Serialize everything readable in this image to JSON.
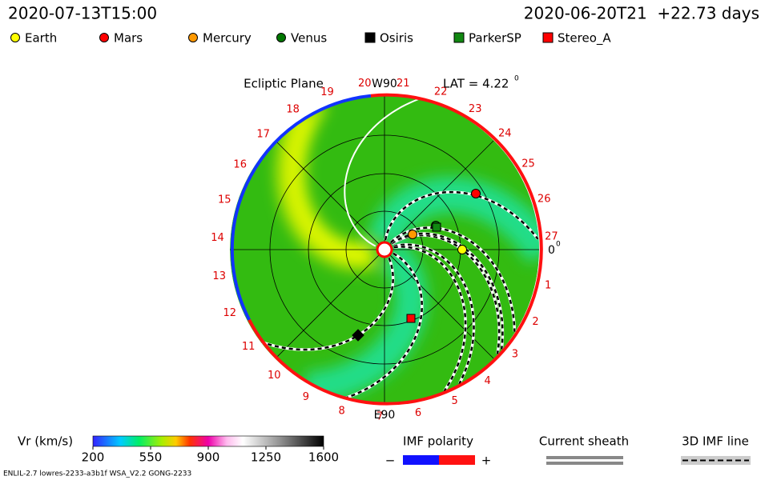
{
  "header": {
    "timestamp": "2020-07-13T15:00",
    "run": "2020-06-20T21  +22.73 days"
  },
  "legend": [
    {
      "label": "Earth",
      "color": "#ffff00",
      "shape": "circle"
    },
    {
      "label": "Mars",
      "color": "#ff0000",
      "shape": "circle"
    },
    {
      "label": "Mercury",
      "color": "#ff9900",
      "shape": "circle"
    },
    {
      "label": "Venus",
      "color": "#007700",
      "shape": "circle"
    },
    {
      "label": "Osiris",
      "color": "#000000",
      "shape": "square"
    },
    {
      "label": "ParkerSP",
      "color": "#118811",
      "shape": "square"
    },
    {
      "label": "Stereo_A",
      "color": "#ff0000",
      "shape": "square"
    }
  ],
  "plot": {
    "title": "Ecliptic Plane",
    "top_label": "W90",
    "bottom_label": "E90",
    "lat_label": "LAT = 4.22",
    "lat_unit": "0",
    "right_label": "0",
    "right_unit": "0",
    "ring_labels": [
      "1",
      "2",
      "3",
      "4",
      "5",
      "6",
      "7",
      "8",
      "9",
      "10",
      "11",
      "12",
      "13",
      "14",
      "15",
      "16",
      "17",
      "18",
      "19",
      "20",
      "21",
      "22",
      "23",
      "24",
      "25",
      "26",
      "27"
    ]
  },
  "colorbar": {
    "title": "Vr (km/s)",
    "lim": [
      200,
      1600
    ],
    "ticks": [
      200,
      550,
      900,
      1250,
      1600
    ]
  },
  "imf_polarity": {
    "title": "IMF polarity",
    "minus": "−",
    "plus": "+"
  },
  "current_sheath": {
    "title": "Current sheath"
  },
  "imf_line": {
    "title": "3D IMF line"
  },
  "footer": "ENLIL-2.7 lowres-2233-a3b1f WSA_V2.2 GONG-2233"
}
